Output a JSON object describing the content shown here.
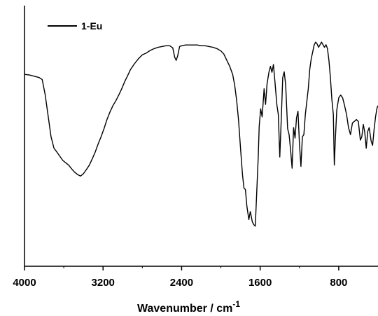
{
  "chart_data": {
    "type": "line",
    "title": "",
    "xlabel": "Wavenumber / cm",
    "xlabel_superscript": "-1",
    "ylabel": "",
    "x_reversed": true,
    "xlim": [
      4000,
      400
    ],
    "ylim": [
      0,
      100
    ],
    "grid": false,
    "legend_position": "top-left",
    "x_ticks": [
      {
        "value": 4000,
        "label": "4000"
      },
      {
        "value": 3200,
        "label": "3200"
      },
      {
        "value": 2400,
        "label": "2400"
      },
      {
        "value": 1600,
        "label": "1600"
      },
      {
        "value": 800,
        "label": "800"
      }
    ],
    "series": [
      {
        "name": "1-Eu",
        "color": "#000000",
        "points": [
          [
            4000,
            73.6
          ],
          [
            3950,
            73.4
          ],
          [
            3900,
            72.9
          ],
          [
            3850,
            72.4
          ],
          [
            3820,
            71.6
          ],
          [
            3790,
            65.9
          ],
          [
            3760,
            57.8
          ],
          [
            3730,
            49.7
          ],
          [
            3700,
            45.3
          ],
          [
            3670,
            43.8
          ],
          [
            3640,
            42.2
          ],
          [
            3610,
            40.6
          ],
          [
            3580,
            39.7
          ],
          [
            3550,
            38.8
          ],
          [
            3520,
            37.4
          ],
          [
            3490,
            36.1
          ],
          [
            3460,
            35.2
          ],
          [
            3430,
            34.6
          ],
          [
            3400,
            35.5
          ],
          [
            3370,
            37.1
          ],
          [
            3340,
            38.8
          ],
          [
            3310,
            41.2
          ],
          [
            3280,
            43.8
          ],
          [
            3250,
            46.9
          ],
          [
            3220,
            49.7
          ],
          [
            3190,
            52.8
          ],
          [
            3160,
            56.3
          ],
          [
            3130,
            59.1
          ],
          [
            3100,
            61.6
          ],
          [
            3070,
            63.5
          ],
          [
            3040,
            65.7
          ],
          [
            3010,
            68.1
          ],
          [
            2980,
            70.8
          ],
          [
            2950,
            73.1
          ],
          [
            2920,
            75.5
          ],
          [
            2880,
            77.7
          ],
          [
            2840,
            79.6
          ],
          [
            2800,
            81.1
          ],
          [
            2760,
            81.8
          ],
          [
            2720,
            82.8
          ],
          [
            2680,
            83.5
          ],
          [
            2640,
            84.0
          ],
          [
            2600,
            84.3
          ],
          [
            2560,
            84.6
          ],
          [
            2520,
            84.6
          ],
          [
            2490,
            83.8
          ],
          [
            2470,
            80.2
          ],
          [
            2455,
            79.0
          ],
          [
            2440,
            80.7
          ],
          [
            2420,
            84.3
          ],
          [
            2400,
            84.6
          ],
          [
            2360,
            84.9
          ],
          [
            2320,
            84.9
          ],
          [
            2280,
            84.9
          ],
          [
            2240,
            84.9
          ],
          [
            2200,
            84.6
          ],
          [
            2160,
            84.6
          ],
          [
            2120,
            84.3
          ],
          [
            2080,
            84.0
          ],
          [
            2040,
            83.5
          ],
          [
            2000,
            82.6
          ],
          [
            1970,
            81.4
          ],
          [
            1940,
            79.0
          ],
          [
            1910,
            76.7
          ],
          [
            1880,
            73.6
          ],
          [
            1860,
            69.6
          ],
          [
            1840,
            63.8
          ],
          [
            1820,
            56.0
          ],
          [
            1800,
            45.3
          ],
          [
            1780,
            35.2
          ],
          [
            1765,
            30.0
          ],
          [
            1750,
            29.4
          ],
          [
            1735,
            23.0
          ],
          [
            1715,
            17.9
          ],
          [
            1700,
            21.0
          ],
          [
            1680,
            17.1
          ],
          [
            1665,
            16.0
          ],
          [
            1650,
            15.4
          ],
          [
            1635,
            28.6
          ],
          [
            1620,
            41.9
          ],
          [
            1610,
            53.8
          ],
          [
            1595,
            60.4
          ],
          [
            1580,
            57.3
          ],
          [
            1560,
            68.1
          ],
          [
            1545,
            62.1
          ],
          [
            1530,
            70.0
          ],
          [
            1510,
            74.6
          ],
          [
            1495,
            76.7
          ],
          [
            1480,
            74.4
          ],
          [
            1465,
            77.4
          ],
          [
            1450,
            71.1
          ],
          [
            1430,
            62.0
          ],
          [
            1415,
            58.2
          ],
          [
            1400,
            41.9
          ],
          [
            1385,
            56.4
          ],
          [
            1370,
            72.4
          ],
          [
            1355,
            74.6
          ],
          [
            1340,
            69.6
          ],
          [
            1320,
            52.8
          ],
          [
            1305,
            50.5
          ],
          [
            1290,
            44.4
          ],
          [
            1275,
            37.6
          ],
          [
            1260,
            53.2
          ],
          [
            1245,
            49.2
          ],
          [
            1230,
            56.9
          ],
          [
            1215,
            59.5
          ],
          [
            1200,
            46.9
          ],
          [
            1185,
            38.3
          ],
          [
            1170,
            49.7
          ],
          [
            1155,
            50.5
          ],
          [
            1140,
            58.2
          ],
          [
            1125,
            63.2
          ],
          [
            1110,
            68.1
          ],
          [
            1095,
            75.5
          ],
          [
            1080,
            79.6
          ],
          [
            1065,
            82.2
          ],
          [
            1050,
            84.9
          ],
          [
            1035,
            86.0
          ],
          [
            1020,
            85.3
          ],
          [
            1005,
            84.0
          ],
          [
            990,
            85.0
          ],
          [
            975,
            86.0
          ],
          [
            960,
            85.0
          ],
          [
            945,
            84.0
          ],
          [
            930,
            85.0
          ],
          [
            915,
            83.5
          ],
          [
            900,
            79.0
          ],
          [
            885,
            72.4
          ],
          [
            870,
            64.0
          ],
          [
            855,
            58.2
          ],
          [
            845,
            38.8
          ],
          [
            835,
            48.4
          ],
          [
            820,
            59.9
          ],
          [
            800,
            64.6
          ],
          [
            780,
            65.7
          ],
          [
            760,
            64.6
          ],
          [
            740,
            61.6
          ],
          [
            720,
            58.2
          ],
          [
            700,
            53.2
          ],
          [
            680,
            50.5
          ],
          [
            660,
            55.0
          ],
          [
            640,
            55.6
          ],
          [
            620,
            56.3
          ],
          [
            600,
            55.6
          ],
          [
            580,
            48.4
          ],
          [
            565,
            49.7
          ],
          [
            550,
            54.4
          ],
          [
            535,
            51.4
          ],
          [
            520,
            45.3
          ],
          [
            505,
            51.7
          ],
          [
            490,
            53.2
          ],
          [
            470,
            48.0
          ],
          [
            455,
            46.4
          ],
          [
            440,
            52.4
          ],
          [
            425,
            57.3
          ],
          [
            410,
            60.7
          ],
          [
            400,
            61.6
          ]
        ]
      }
    ]
  }
}
